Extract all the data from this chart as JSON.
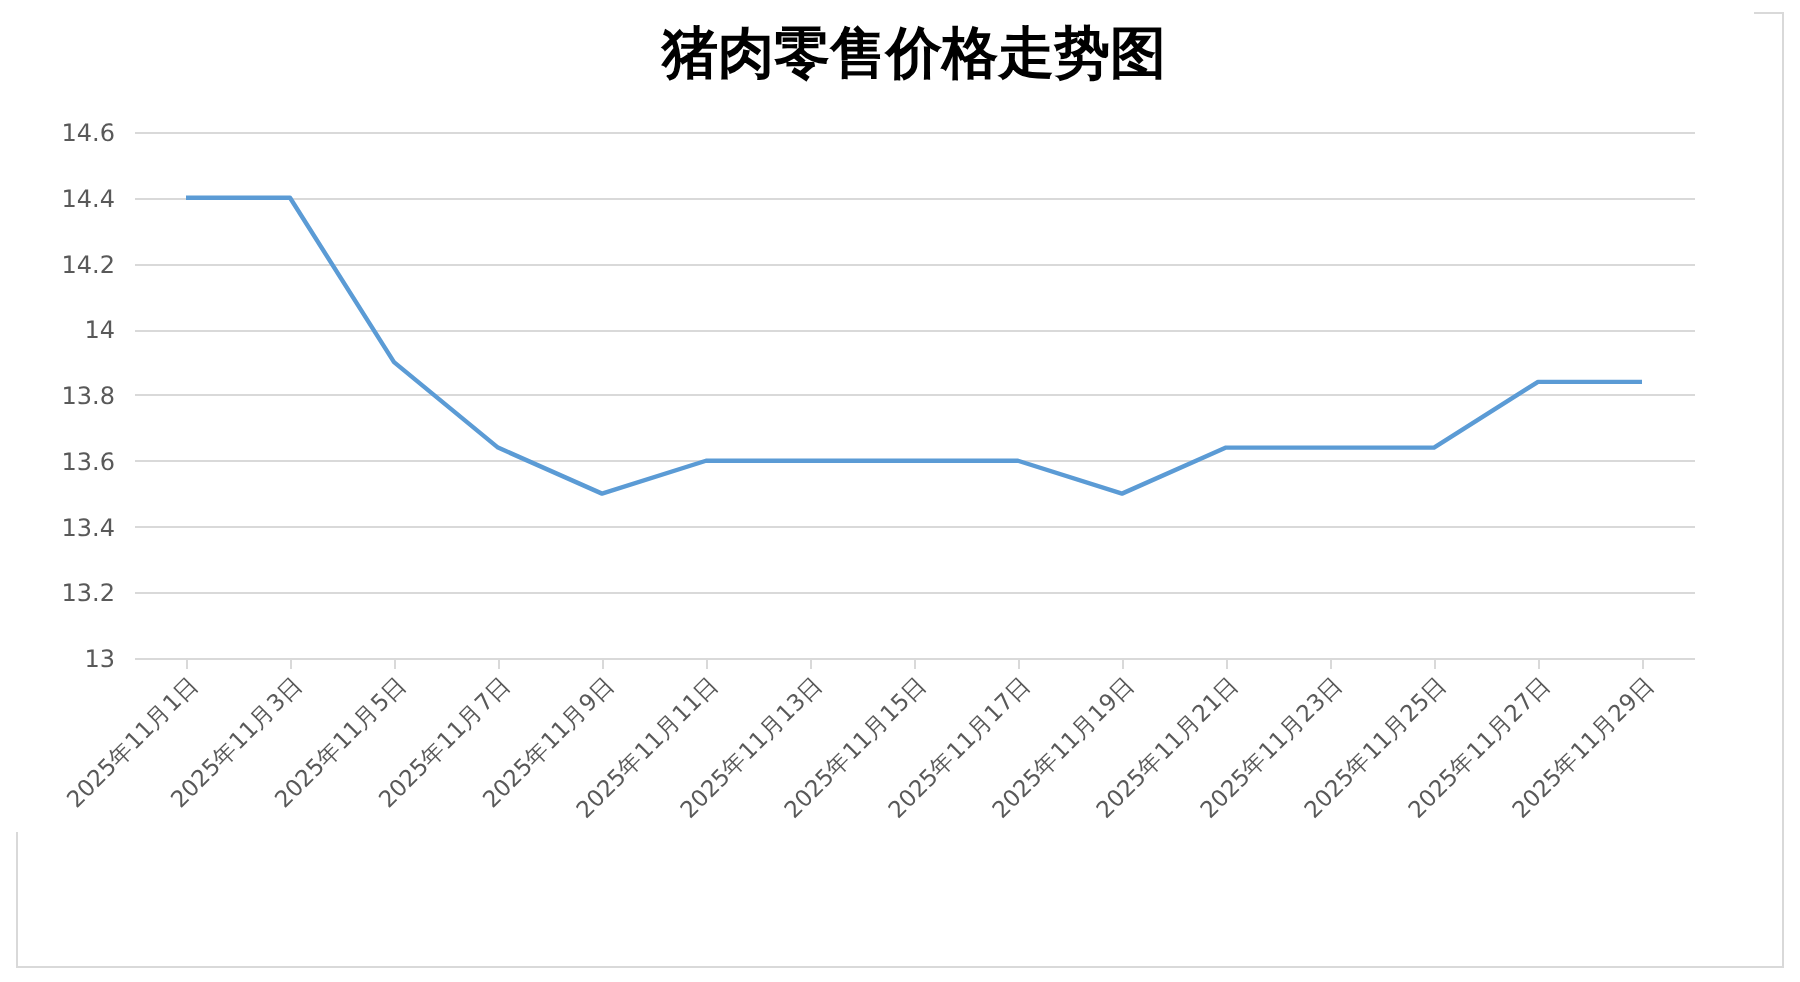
{
  "chart_data": {
    "type": "line",
    "title": "猪肉零售价格走势图",
    "categories": [
      "2025年11月1日",
      "2025年11月3日",
      "2025年11月5日",
      "2025年11月7日",
      "2025年11月9日",
      "2025年11月11日",
      "2025年11月13日",
      "2025年11月15日",
      "2025年11月17日",
      "2025年11月19日",
      "2025年11月21日",
      "2025年11月23日",
      "2025年11月25日",
      "2025年11月27日",
      "2025年11月29日"
    ],
    "series": [
      {
        "color": "#5b9bd5",
        "values": [
          14.4,
          14.4,
          13.9,
          13.64,
          13.5,
          13.6,
          13.6,
          13.6,
          13.6,
          13.5,
          13.64,
          13.64,
          13.64,
          13.84,
          13.84
        ]
      }
    ],
    "ylim": [
      13,
      14.6
    ],
    "yticks": [
      13,
      13.2,
      13.4,
      13.6,
      13.8,
      14,
      14.2,
      14.4,
      14.6
    ],
    "grid": "y",
    "marker": "none",
    "line_style": "solid"
  }
}
